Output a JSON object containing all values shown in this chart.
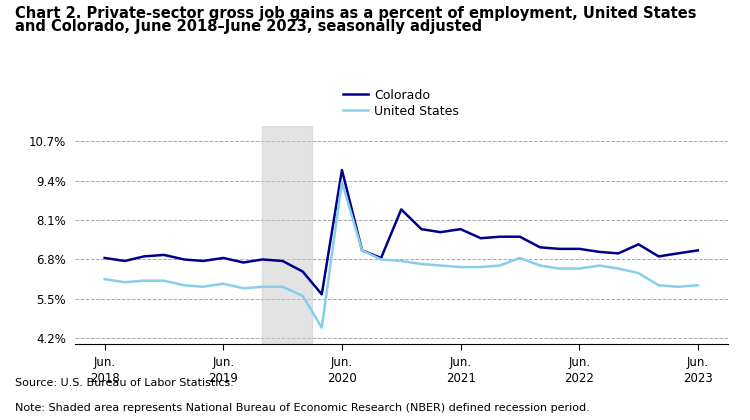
{
  "title_line1": "Chart 2. Private-sector gross job gains as a percent of employment, United States",
  "title_line2": "and Colorado, June 2018–June 2023, seasonally adjusted",
  "title_fontsize": 10.5,
  "source_text": "Source: U.S. Bureau of Labor Statistics.",
  "note_text": "Note: Shaded area represents National Bureau of Economic Research (NBER) defined recession period.",
  "yticks": [
    4.2,
    5.5,
    6.8,
    8.1,
    9.4,
    10.7
  ],
  "ytick_labels": [
    "4.2%",
    "5.5%",
    "6.8%",
    "8.1%",
    "9.4%",
    "10.7%"
  ],
  "ylim": [
    4.0,
    11.2
  ],
  "recession_start": 2019.83,
  "recession_end": 2020.25,
  "colorado_color": "#00008B",
  "us_color": "#87CEEB",
  "colorado_label": "Colorado",
  "us_label": "United States",
  "x_tick_positions": [
    2018.5,
    2019.5,
    2020.5,
    2021.5,
    2022.5,
    2023.5
  ],
  "x_tick_labels": [
    "Jun.\n2018",
    "Jun.\n2019",
    "Jun.\n2020",
    "Jun.\n2021",
    "Jun.\n2022",
    "Jun.\n2023"
  ],
  "xlim": [
    2018.25,
    2023.75
  ],
  "colorado_x": [
    2018.5,
    2018.67,
    2018.83,
    2019.0,
    2019.17,
    2019.33,
    2019.5,
    2019.67,
    2019.83,
    2020.0,
    2020.17,
    2020.33,
    2020.5,
    2020.67,
    2020.83,
    2021.0,
    2021.17,
    2021.33,
    2021.5,
    2021.67,
    2021.83,
    2022.0,
    2022.17,
    2022.33,
    2022.5,
    2022.67,
    2022.83,
    2023.0,
    2023.17,
    2023.33,
    2023.5
  ],
  "colorado_y": [
    6.85,
    6.75,
    6.9,
    6.95,
    6.8,
    6.75,
    6.85,
    6.7,
    6.8,
    6.75,
    6.4,
    5.65,
    9.75,
    7.1,
    6.85,
    8.45,
    7.8,
    7.7,
    7.8,
    7.5,
    7.55,
    7.55,
    7.2,
    7.15,
    7.15,
    7.05,
    7.0,
    7.3,
    6.9,
    7.0,
    7.1
  ],
  "us_x": [
    2018.5,
    2018.67,
    2018.83,
    2019.0,
    2019.17,
    2019.33,
    2019.5,
    2019.67,
    2019.83,
    2020.0,
    2020.17,
    2020.33,
    2020.5,
    2020.67,
    2020.83,
    2021.0,
    2021.17,
    2021.33,
    2021.5,
    2021.67,
    2021.83,
    2022.0,
    2022.17,
    2022.33,
    2022.5,
    2022.67,
    2022.83,
    2023.0,
    2023.17,
    2023.33,
    2023.5
  ],
  "us_y": [
    6.15,
    6.05,
    6.1,
    6.1,
    5.95,
    5.9,
    6.0,
    5.85,
    5.9,
    5.9,
    5.6,
    4.55,
    9.35,
    7.1,
    6.8,
    6.75,
    6.65,
    6.6,
    6.55,
    6.55,
    6.6,
    6.85,
    6.6,
    6.5,
    6.5,
    6.6,
    6.5,
    6.35,
    5.95,
    5.9,
    5.95
  ],
  "line_width": 1.8,
  "background_color": "#ffffff",
  "shaded_color": "#cccccc",
  "shaded_alpha": 0.55
}
